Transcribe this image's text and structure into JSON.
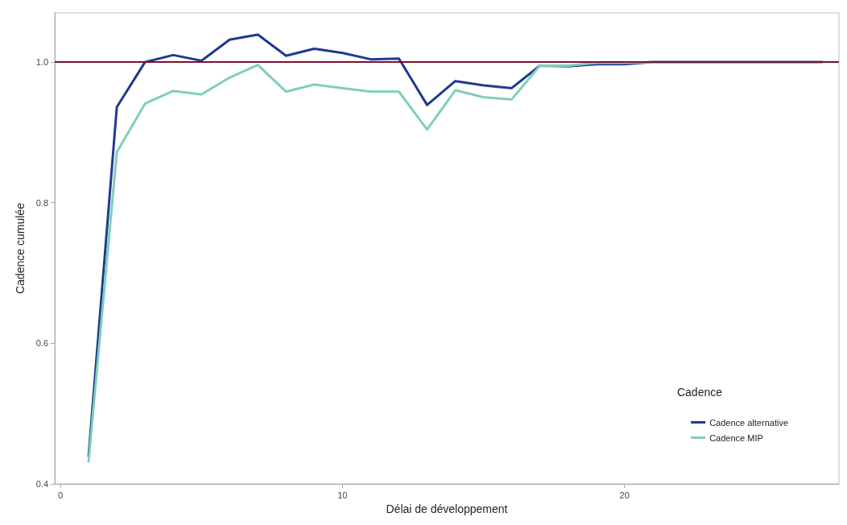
{
  "chart_data": {
    "type": "line",
    "xlabel": "Délai de développement",
    "ylabel": "Cadence cumulée",
    "legend_title": "Cadence",
    "legend": "bottom right",
    "grid": false,
    "line_style": "solid",
    "marker": "none",
    "x": [
      1,
      2,
      3,
      4,
      5,
      6,
      7,
      8,
      9,
      10,
      11,
      12,
      13,
      14,
      15,
      16,
      17,
      18,
      19,
      20,
      21,
      22,
      23,
      24,
      25,
      26,
      27
    ],
    "xlim": [
      -0.2,
      27.6
    ],
    "xticks": [
      0,
      10,
      20
    ],
    "ylim": [
      0.4,
      1.07
    ],
    "yticks": [
      0.4,
      0.6,
      0.8,
      {
        "value": 1,
        "label": "1.0"
      }
    ],
    "series": [
      {
        "name": "Cadence alternative",
        "color": "#1f3a8f",
        "values": [
          0.44,
          0.936,
          1.0,
          1.01,
          1.002,
          1.032,
          1.039,
          1.009,
          1.019,
          1.013,
          1.004,
          1.005,
          0.939,
          0.973,
          0.967,
          0.963,
          0.995,
          0.994,
          0.997,
          0.997,
          1.0,
          1.0,
          1.0,
          1.0,
          1.0,
          1.0,
          1.0
        ]
      },
      {
        "name": "Cadence MIP",
        "color": "#7fcfbb",
        "values": [
          0.432,
          0.872,
          0.941,
          0.959,
          0.954,
          0.978,
          0.996,
          0.958,
          0.968,
          0.963,
          0.958,
          0.958,
          0.904,
          0.96,
          0.95,
          0.947,
          0.995,
          0.995,
          0.999,
          0.999,
          1.0,
          1.0,
          1.0,
          1.0,
          1.0,
          1.0,
          1.0
        ]
      }
    ],
    "ref_lines": [
      {
        "axis": "y",
        "value": 1,
        "color": "#7a1030"
      }
    ]
  }
}
